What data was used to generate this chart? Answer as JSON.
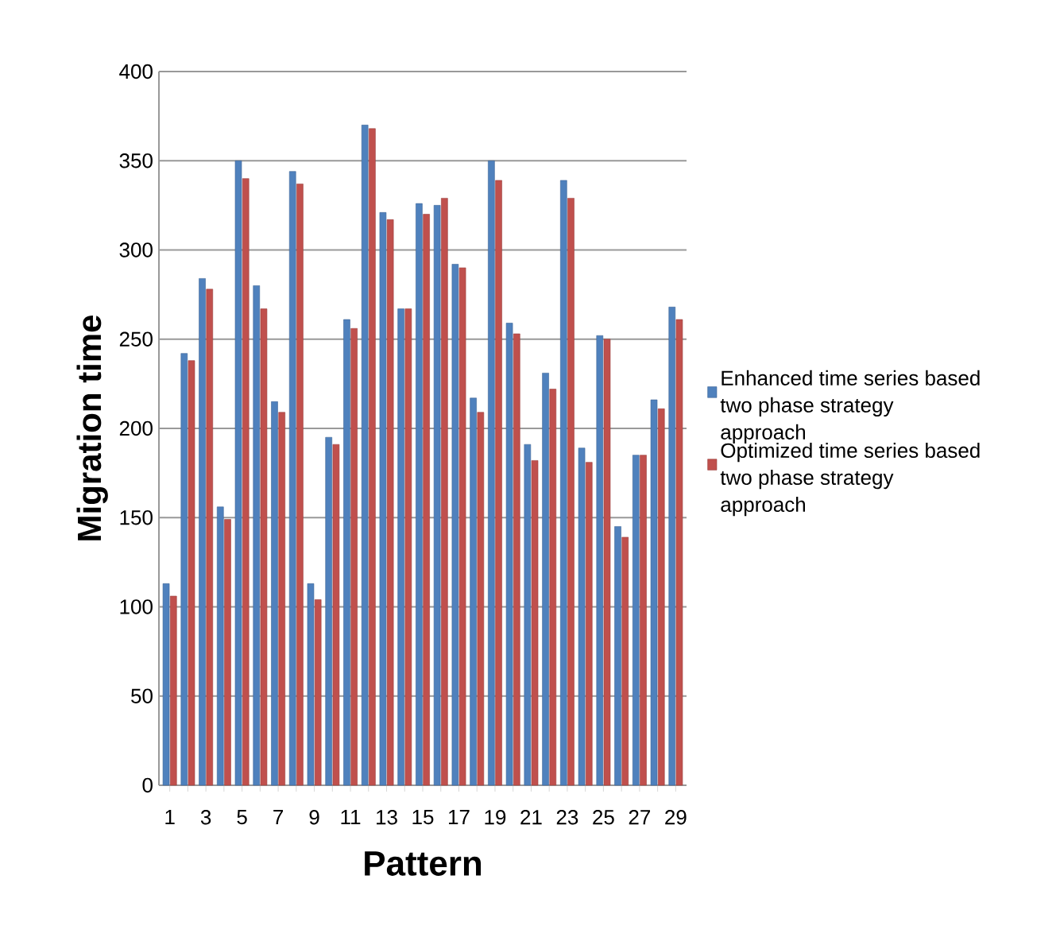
{
  "chart_data": {
    "type": "bar",
    "xlabel": "Pattern",
    "ylabel": "Migration time",
    "categories": [
      "1",
      null,
      "3",
      null,
      "5",
      null,
      "7",
      null,
      "9",
      null,
      "11",
      null,
      "13",
      null,
      "15",
      null,
      "17",
      null,
      "19",
      null,
      "21",
      null,
      "23",
      null,
      "25",
      null,
      "27",
      null,
      "29"
    ],
    "series": [
      {
        "name": "Enhanced time series based two phase strategy approach",
        "color": "#4f81bd",
        "values": [
          113,
          242,
          284,
          156,
          350,
          280,
          215,
          344,
          113,
          195,
          261,
          370,
          321,
          267,
          326,
          325,
          292,
          217,
          350,
          259,
          191,
          231,
          339,
          189,
          252,
          145,
          185,
          216,
          268
        ]
      },
      {
        "name": "Optimized time series based two phase strategy approach",
        "color": "#c0504d",
        "values": [
          106,
          238,
          278,
          149,
          340,
          267,
          209,
          337,
          104,
          191,
          256,
          368,
          317,
          267,
          320,
          329,
          290,
          209,
          339,
          253,
          182,
          222,
          329,
          181,
          250,
          139,
          185,
          211,
          261
        ]
      }
    ],
    "ylim": [
      0,
      400
    ],
    "yticks": [
      0,
      50,
      100,
      150,
      200,
      250,
      300,
      350,
      400
    ],
    "grid": "y",
    "legend": "right"
  }
}
